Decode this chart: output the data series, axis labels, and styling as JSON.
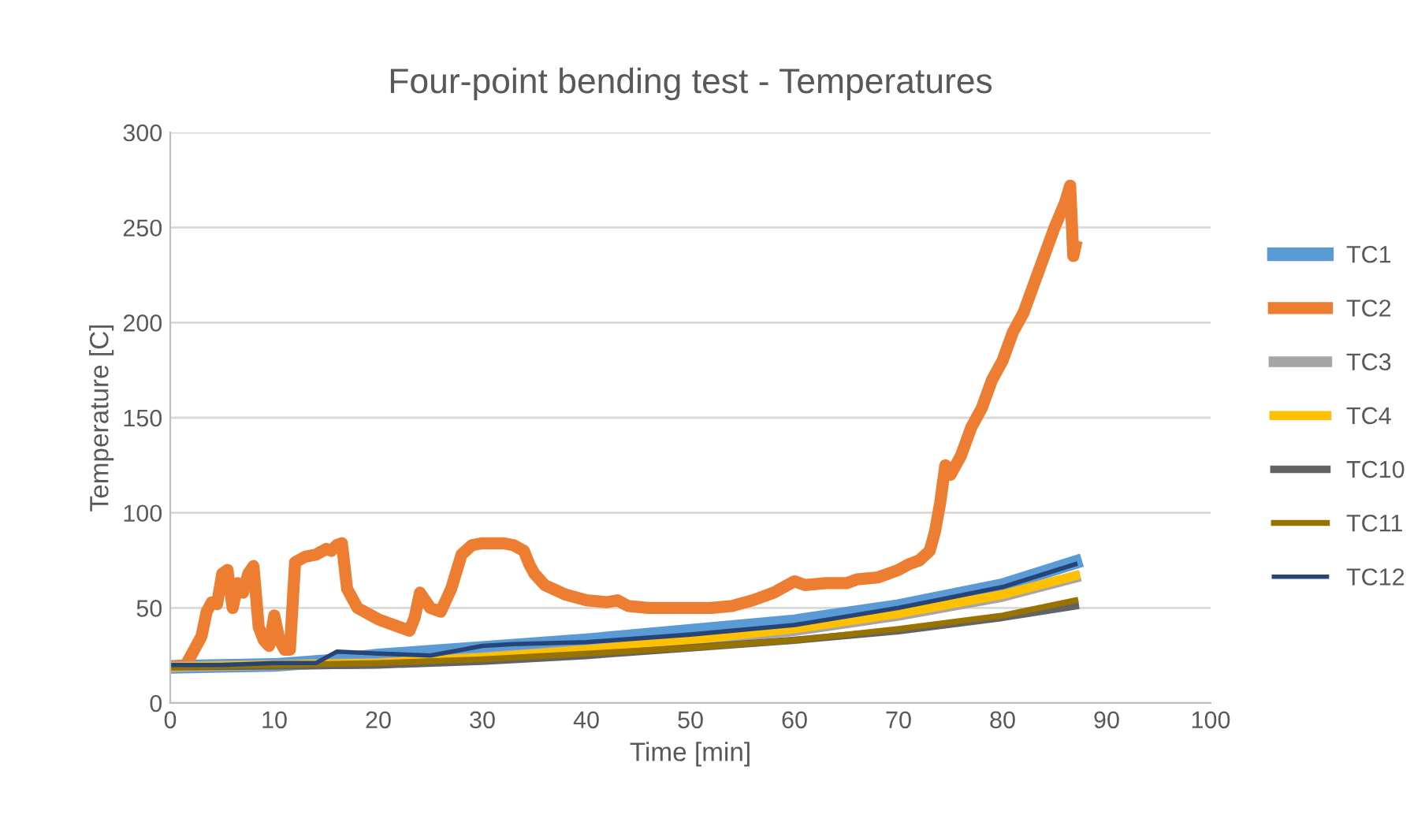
{
  "chart_data": {
    "type": "line",
    "title": "Four-point bending test - Temperatures",
    "xlabel": "Time [min]",
    "ylabel": "Temperature [C]",
    "xlim": [
      0,
      100
    ],
    "xticks": [
      0,
      10,
      20,
      30,
      40,
      50,
      60,
      70,
      80,
      90,
      100
    ],
    "ylim": [
      0,
      300
    ],
    "yticks": [
      0,
      50,
      100,
      150,
      200,
      250,
      300
    ],
    "grid": "y",
    "legend": "right",
    "marker": "none",
    "line_style": "solid",
    "series": [
      {
        "name": "TC1",
        "color": "#5b9bd5",
        "x": [
          0,
          10,
          15,
          20,
          25,
          30,
          40,
          50,
          60,
          70,
          80,
          87
        ],
        "values": [
          19,
          20,
          22,
          25,
          27,
          29,
          33,
          38,
          43,
          51,
          62,
          74
        ]
      },
      {
        "name": "TC2",
        "color": "#ed7d31",
        "x": [
          0,
          1.5,
          3,
          3.5,
          4,
          4.5,
          5,
          5.5,
          6,
          6.5,
          7,
          7.5,
          8,
          8.5,
          9,
          9.5,
          10,
          10.5,
          11,
          11.5,
          12,
          13,
          14,
          15,
          15.5,
          16,
          16.5,
          17,
          18,
          20,
          22,
          23,
          23.5,
          24,
          25,
          26,
          27,
          28,
          29,
          30,
          32,
          33,
          34,
          34.5,
          35,
          36,
          38,
          40,
          42,
          43,
          44,
          46,
          50,
          52,
          54,
          56,
          58,
          59,
          60,
          61,
          63,
          65,
          66,
          68,
          70,
          71,
          72,
          73,
          73.5,
          74,
          74.5,
          75,
          76,
          77,
          78,
          79,
          80,
          81,
          82,
          83,
          84,
          85,
          86,
          86.5,
          86.8,
          87
        ],
        "values": [
          19,
          20,
          35,
          48,
          53,
          52,
          68,
          70,
          50,
          63,
          58,
          68,
          72,
          40,
          33,
          30,
          46,
          33,
          28,
          28,
          74,
          77,
          78,
          81,
          80,
          83,
          84,
          60,
          50,
          44,
          40,
          38,
          45,
          58,
          50,
          48,
          60,
          78,
          83,
          84,
          84,
          83,
          80,
          73,
          68,
          62,
          57,
          54,
          53,
          54,
          51,
          50,
          50,
          50,
          51,
          54,
          58,
          61,
          64,
          62,
          63,
          63,
          65,
          66,
          70,
          73,
          75,
          80,
          90,
          105,
          125,
          120,
          130,
          145,
          155,
          170,
          180,
          195,
          205,
          220,
          235,
          250,
          263,
          272,
          235,
          240
        ]
      },
      {
        "name": "TC3",
        "color": "#a5a5a5",
        "x": [
          0,
          20,
          30,
          40,
          50,
          60,
          70,
          80,
          87
        ],
        "values": [
          19,
          21,
          24,
          28,
          33,
          38,
          46,
          56,
          66
        ]
      },
      {
        "name": "TC4",
        "color": "#ffc000",
        "x": [
          0,
          10,
          20,
          30,
          40,
          50,
          60,
          70,
          80,
          87
        ],
        "values": [
          19,
          20,
          21,
          24,
          28,
          33,
          39,
          47,
          57,
          67
        ]
      },
      {
        "name": "TC10",
        "color": "#636363",
        "x": [
          0,
          20,
          30,
          40,
          50,
          60,
          70,
          80,
          87
        ],
        "values": [
          19,
          20,
          22,
          25,
          29,
          33,
          38,
          45,
          51
        ]
      },
      {
        "name": "TC11",
        "color": "#997300",
        "x": [
          0,
          20,
          30,
          40,
          50,
          60,
          70,
          80,
          87
        ],
        "values": [
          19,
          21,
          23,
          26,
          29,
          33,
          39,
          46,
          54
        ]
      },
      {
        "name": "TC12",
        "color": "#264478",
        "x": [
          0,
          5,
          10,
          14,
          16,
          20,
          25,
          28,
          30,
          33,
          40,
          50,
          60,
          70,
          80,
          87
        ],
        "values": [
          20,
          20,
          21,
          21,
          27,
          26,
          25,
          28,
          30,
          31,
          32,
          36,
          41,
          50,
          61,
          73
        ]
      }
    ]
  }
}
